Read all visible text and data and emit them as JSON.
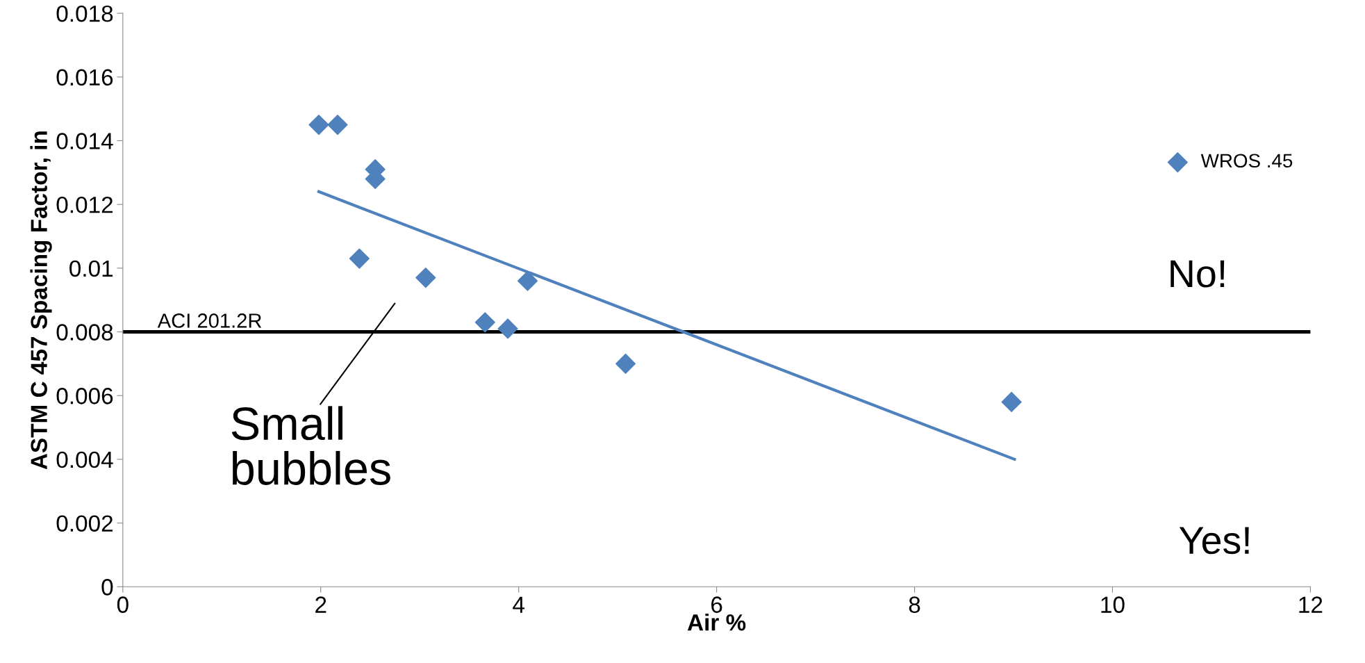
{
  "chart_data": {
    "type": "scatter",
    "xlabel": "Air %",
    "ylabel": "ASTM C 457 Spacing Factor, in",
    "series": [
      {
        "name": "WROS .45",
        "color": "#4f81bd",
        "marker": "diamond",
        "x": [
          1.98,
          2.17,
          2.55,
          2.55,
          2.39,
          3.06,
          4.09,
          3.66,
          3.89,
          5.08,
          8.98
        ],
        "values": [
          0.0145,
          0.0145,
          0.0131,
          0.0128,
          0.0103,
          0.0097,
          0.0096,
          0.0083,
          0.0081,
          0.007,
          0.0058
        ]
      },
      {
        "type": "line",
        "color": "#4f81bd",
        "x": [
          1.98,
          9.01
        ],
        "values": [
          0.0124,
          0.004
        ]
      }
    ],
    "xlim": [
      0,
      12
    ],
    "xticks": [
      0,
      2,
      4,
      6,
      8,
      10,
      12
    ],
    "ylim": [
      0,
      0.018
    ],
    "yticks": [
      0,
      0.002,
      0.004,
      0.006,
      0.008,
      0.01,
      0.012,
      0.014,
      0.016,
      0.018
    ],
    "ref_lines": [
      {
        "axis": "y",
        "value": 0.008,
        "label": "ACI 201.2R",
        "color": "#000000"
      }
    ],
    "annotations": [
      "No!",
      "Yes!",
      "Small\nbubbles"
    ],
    "grid": false,
    "legend": "right"
  }
}
